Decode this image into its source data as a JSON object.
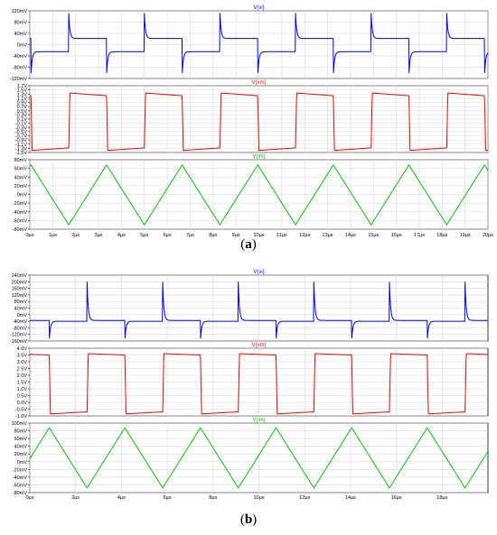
{
  "captions": {
    "a": "a",
    "b": "b"
  },
  "chart_data": [
    {
      "type": "line",
      "panel": "a",
      "x_ticks": [
        "0µs",
        "1µs",
        "2µs",
        "3µs",
        "4µs",
        "5µs",
        "6µs",
        "7µs",
        "8µs",
        "9µs",
        "10µs",
        "11µs",
        "12µs",
        "13µs",
        "14µs",
        "15µs",
        "16µs",
        "17µs",
        "18µs",
        "19µs",
        "20µs"
      ],
      "xlim": [
        0,
        20
      ],
      "period_us": 3.3,
      "rise_start_us": 1.7,
      "plots": [
        {
          "series_name": "V(vi)",
          "color": "#0000ff",
          "kind": "vi",
          "ylim": [
            -120,
            120
          ],
          "y_ticks": [
            "120mV",
            "80mV",
            "40mV",
            "0mV",
            "-40mV",
            "-80mV",
            "-120mV"
          ],
          "y_tick_values": [
            120,
            80,
            40,
            0,
            -40,
            -80,
            -120
          ],
          "levels": {
            "high": 22,
            "low": -25,
            "spike_up": 112,
            "spike_down": -112
          }
        },
        {
          "series_name": "V(vm)",
          "color": "#ff0000",
          "kind": "vm",
          "ylim": [
            -1.5,
            1.7
          ],
          "y_ticks": [
            "1.7V",
            "1.5V",
            "1.3V",
            "1.1V",
            "0.9V",
            "0.7V",
            "0.5V",
            "0.3V",
            "0.1V",
            "-0.1V",
            "-0.3V",
            "-0.5V",
            "-0.7V",
            "-0.9V",
            "-1.1V",
            "-1.3V",
            "-1.5V"
          ],
          "y_tick_values": [
            1.7,
            1.5,
            1.3,
            1.1,
            0.9,
            0.7,
            0.5,
            0.3,
            0.1,
            -0.1,
            -0.3,
            -0.5,
            -0.7,
            -0.9,
            -1.1,
            -1.3,
            -1.5
          ],
          "levels": {
            "high_start": 1.35,
            "high_end": 1.22,
            "low_start": -1.4,
            "low_end": -1.28
          }
        },
        {
          "series_name": "V(im)",
          "color": "#00cc00",
          "kind": "im",
          "ylim": [
            -80,
            80
          ],
          "y_ticks": [
            "80mV",
            "60mV",
            "40mV",
            "20mV",
            "0mV",
            "-20mV",
            "-40mV",
            "-60mV",
            "-80mV"
          ],
          "y_tick_values": [
            80,
            60,
            40,
            20,
            0,
            -20,
            -40,
            -60,
            -80
          ],
          "levels": {
            "peak": 68,
            "trough": -70
          }
        }
      ]
    },
    {
      "type": "line",
      "panel": "b",
      "x_ticks": [
        "0µs",
        "2µs",
        "4µs",
        "6µs",
        "8µs",
        "10µs",
        "12µs",
        "14µs",
        "16µs",
        "18µs"
      ],
      "xlim": [
        0,
        20
      ],
      "period_us": 3.3,
      "rise_start_us": 2.5,
      "plots": [
        {
          "series_name": "V(vi)",
          "color": "#0000ff",
          "kind": "vi",
          "ylim": [
            -160,
            240
          ],
          "y_ticks": [
            "240mV",
            "200mV",
            "160mV",
            "120mV",
            "80mV",
            "40mV",
            "0mV",
            "-40mV",
            "-80mV",
            "-120mV",
            "-160mV"
          ],
          "y_tick_values": [
            240,
            200,
            160,
            120,
            80,
            40,
            0,
            -40,
            -80,
            -120,
            -160
          ],
          "levels": {
            "high": -35,
            "low": -40,
            "spike_up": 200,
            "spike_down": -160
          }
        },
        {
          "series_name": "V(vm)",
          "color": "#ff0000",
          "kind": "vm",
          "ylim": [
            -1.0,
            4.0
          ],
          "y_ticks": [
            "4.0V",
            "3.5V",
            "3.0V",
            "2.5V",
            "2.0V",
            "1.5V",
            "1.0V",
            "0.5V",
            "0.0V",
            "-0.5V",
            "-1.0V"
          ],
          "y_tick_values": [
            4.0,
            3.5,
            3.0,
            2.5,
            2.0,
            1.5,
            1.0,
            0.5,
            0.0,
            -0.5,
            -1.0
          ],
          "levels": {
            "high_start": 3.6,
            "high_end": 3.5,
            "low_start": -0.85,
            "low_end": -0.7
          }
        },
        {
          "series_name": "V(im)",
          "color": "#00cc00",
          "kind": "im",
          "ylim": [
            -80,
            100
          ],
          "y_ticks": [
            "100mV",
            "80mV",
            "60mV",
            "40mV",
            "20mV",
            "0mV",
            "-20mV",
            "-40mV",
            "-60mV",
            "-80mV"
          ],
          "y_tick_values": [
            100,
            80,
            60,
            40,
            20,
            0,
            -20,
            -40,
            -60,
            -80
          ],
          "levels": {
            "peak": 88,
            "trough": -68
          }
        }
      ]
    }
  ]
}
